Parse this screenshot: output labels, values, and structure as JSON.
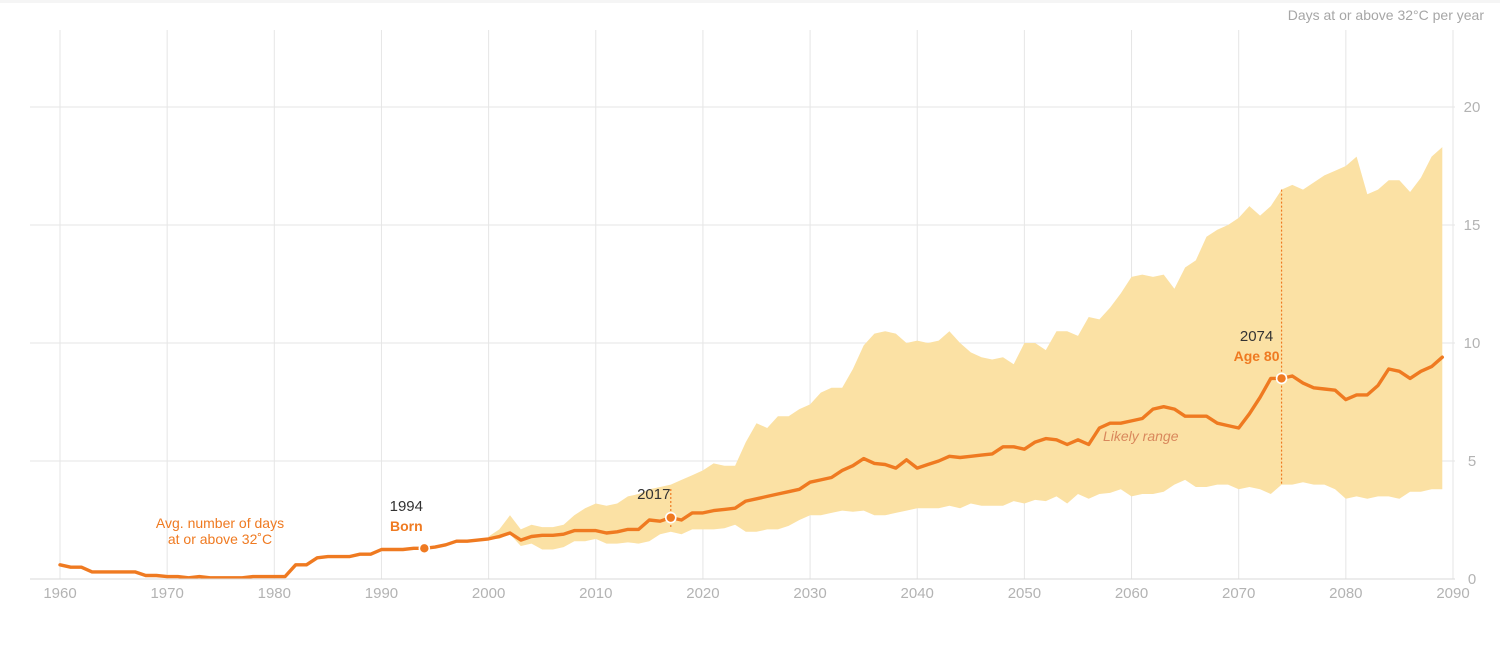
{
  "chart_data": {
    "type": "area",
    "unit_label": "Days at or above 32°C per year",
    "xlim": [
      1957,
      2090
    ],
    "ylim": [
      0,
      23
    ],
    "x_ticks": [
      1960,
      1970,
      1980,
      1990,
      2000,
      2010,
      2020,
      2030,
      2040,
      2050,
      2060,
      2070,
      2080,
      2090
    ],
    "y_ticks": [
      0,
      5,
      10,
      15,
      20
    ],
    "grid": true,
    "series": [
      {
        "name": "Avg. number of days at or above 32˚C",
        "color": "#ef7a21",
        "x": [
          1960,
          1961,
          1962,
          1963,
          1964,
          1965,
          1966,
          1967,
          1968,
          1969,
          1970,
          1971,
          1972,
          1973,
          1974,
          1975,
          1976,
          1977,
          1978,
          1979,
          1980,
          1981,
          1982,
          1983,
          1984,
          1985,
          1986,
          1987,
          1988,
          1989,
          1990,
          1991,
          1992,
          1993,
          1994,
          1995,
          1996,
          1997,
          1998,
          1999,
          2000,
          2001,
          2002,
          2003,
          2004,
          2005,
          2006,
          2007,
          2008,
          2009,
          2010,
          2011,
          2012,
          2013,
          2014,
          2015,
          2016,
          2017,
          2018,
          2019,
          2020,
          2021,
          2022,
          2023,
          2024,
          2025,
          2026,
          2027,
          2028,
          2029,
          2030,
          2031,
          2032,
          2033,
          2034,
          2035,
          2036,
          2037,
          2038,
          2039,
          2040,
          2041,
          2042,
          2043,
          2044,
          2045,
          2046,
          2047,
          2048,
          2049,
          2050,
          2051,
          2052,
          2053,
          2054,
          2055,
          2056,
          2057,
          2058,
          2059,
          2060,
          2061,
          2062,
          2063,
          2064,
          2065,
          2066,
          2067,
          2068,
          2069,
          2070,
          2071,
          2072,
          2073,
          2074,
          2075,
          2076,
          2077,
          2078,
          2079,
          2080,
          2081,
          2082,
          2083,
          2084,
          2085,
          2086,
          2087,
          2088,
          2089
        ],
        "y": [
          0.6,
          0.5,
          0.5,
          0.3,
          0.3,
          0.3,
          0.3,
          0.3,
          0.15,
          0.15,
          0.1,
          0.1,
          0.05,
          0.1,
          0.05,
          0.05,
          0.05,
          0.05,
          0.1,
          0.1,
          0.1,
          0.1,
          0.6,
          0.6,
          0.9,
          0.95,
          0.95,
          0.95,
          1.05,
          1.05,
          1.25,
          1.25,
          1.25,
          1.3,
          1.3,
          1.35,
          1.45,
          1.6,
          1.6,
          1.65,
          1.7,
          1.8,
          1.95,
          1.65,
          1.8,
          1.85,
          1.85,
          1.9,
          2.05,
          2.05,
          2.05,
          1.95,
          2.0,
          2.1,
          2.1,
          2.5,
          2.45,
          2.6,
          2.5,
          2.8,
          2.8,
          2.9,
          2.95,
          3.0,
          3.3,
          3.4,
          3.5,
          3.6,
          3.7,
          3.8,
          4.1,
          4.2,
          4.3,
          4.6,
          4.8,
          5.1,
          4.9,
          4.85,
          4.7,
          5.05,
          4.7,
          4.85,
          5.0,
          5.2,
          5.15,
          5.2,
          5.25,
          5.3,
          5.6,
          5.6,
          5.5,
          5.8,
          5.95,
          5.9,
          5.7,
          5.9,
          5.7,
          6.4,
          6.6,
          6.6,
          6.7,
          6.8,
          7.2,
          7.3,
          7.2,
          6.9,
          6.9,
          6.9,
          6.6,
          6.5,
          6.4,
          7.0,
          7.7,
          8.5,
          8.5,
          8.6,
          8.3,
          8.1,
          8.05,
          8.0,
          7.6,
          7.8,
          7.8,
          8.2,
          8.9,
          8.8,
          8.5,
          8.8,
          9.0,
          9.4
        ]
      }
    ],
    "range_band": {
      "name": "Likely range",
      "color": "#fbe1a4",
      "x": [
        2000,
        2001,
        2002,
        2003,
        2004,
        2005,
        2006,
        2007,
        2008,
        2009,
        2010,
        2011,
        2012,
        2013,
        2014,
        2015,
        2016,
        2017,
        2018,
        2019,
        2020,
        2021,
        2022,
        2023,
        2024,
        2025,
        2026,
        2027,
        2028,
        2029,
        2030,
        2031,
        2032,
        2033,
        2034,
        2035,
        2036,
        2037,
        2038,
        2039,
        2040,
        2041,
        2042,
        2043,
        2044,
        2045,
        2046,
        2047,
        2048,
        2049,
        2050,
        2051,
        2052,
        2053,
        2054,
        2055,
        2056,
        2057,
        2058,
        2059,
        2060,
        2061,
        2062,
        2063,
        2064,
        2065,
        2066,
        2067,
        2068,
        2069,
        2070,
        2071,
        2072,
        2073,
        2074,
        2075,
        2076,
        2077,
        2078,
        2079,
        2080,
        2081,
        2082,
        2083,
        2084,
        2085,
        2086,
        2087,
        2088,
        2089
      ],
      "low": [
        1.7,
        1.7,
        1.9,
        1.4,
        1.5,
        1.25,
        1.25,
        1.35,
        1.6,
        1.6,
        1.7,
        1.5,
        1.5,
        1.55,
        1.5,
        1.6,
        1.9,
        2.0,
        1.9,
        2.1,
        2.1,
        2.1,
        2.15,
        2.3,
        2.0,
        2.0,
        2.1,
        2.1,
        2.25,
        2.5,
        2.7,
        2.7,
        2.8,
        2.9,
        2.85,
        2.9,
        2.7,
        2.7,
        2.8,
        2.9,
        3.0,
        3.0,
        3.0,
        3.1,
        3.0,
        3.2,
        3.1,
        3.1,
        3.1,
        3.3,
        3.2,
        3.35,
        3.3,
        3.5,
        3.2,
        3.6,
        3.4,
        3.6,
        3.65,
        3.8,
        3.5,
        3.6,
        3.6,
        3.7,
        4.0,
        4.2,
        3.9,
        3.9,
        4.0,
        4.0,
        3.8,
        3.9,
        3.8,
        3.6,
        4.0,
        4.0,
        4.1,
        4.0,
        4.0,
        3.8,
        3.4,
        3.5,
        3.4,
        3.5,
        3.5,
        3.4,
        3.7,
        3.7,
        3.8,
        3.8
      ],
      "high": [
        1.8,
        2.1,
        2.7,
        2.1,
        2.3,
        2.2,
        2.2,
        2.3,
        2.7,
        3.0,
        3.2,
        3.1,
        3.2,
        3.5,
        3.6,
        3.8,
        3.9,
        4.0,
        4.2,
        4.4,
        4.6,
        4.9,
        4.8,
        4.8,
        5.8,
        6.6,
        6.4,
        6.9,
        6.9,
        7.2,
        7.4,
        7.9,
        8.1,
        8.1,
        8.9,
        9.9,
        10.4,
        10.5,
        10.4,
        10.0,
        10.1,
        10.0,
        10.1,
        10.5,
        10.0,
        9.6,
        9.4,
        9.3,
        9.4,
        9.1,
        10.0,
        10.0,
        9.7,
        10.5,
        10.5,
        10.3,
        11.1,
        11.0,
        11.5,
        12.1,
        12.8,
        12.9,
        12.8,
        12.9,
        12.3,
        13.2,
        13.5,
        14.5,
        14.8,
        15.0,
        15.3,
        15.8,
        15.4,
        15.8,
        16.5,
        16.7,
        16.5,
        16.8,
        17.1,
        17.3,
        17.5,
        17.9,
        16.3,
        16.5,
        16.9,
        16.9,
        16.4,
        17.0,
        17.9,
        18.3
      ]
    },
    "annotations": [
      {
        "year_text": "1994",
        "label": "Born",
        "x": 1994,
        "y": 1.3
      },
      {
        "year_text": "2017",
        "label": "",
        "x": 2017,
        "y": 2.6
      },
      {
        "year_text": "2074",
        "label": "Age 80",
        "x": 2074,
        "y": 8.5
      }
    ],
    "series_label_lines": [
      "Avg. number of days",
      "at or above 32˚C"
    ],
    "band_label": "Likely range",
    "title": "",
    "xlabel": "",
    "ylabel": ""
  }
}
